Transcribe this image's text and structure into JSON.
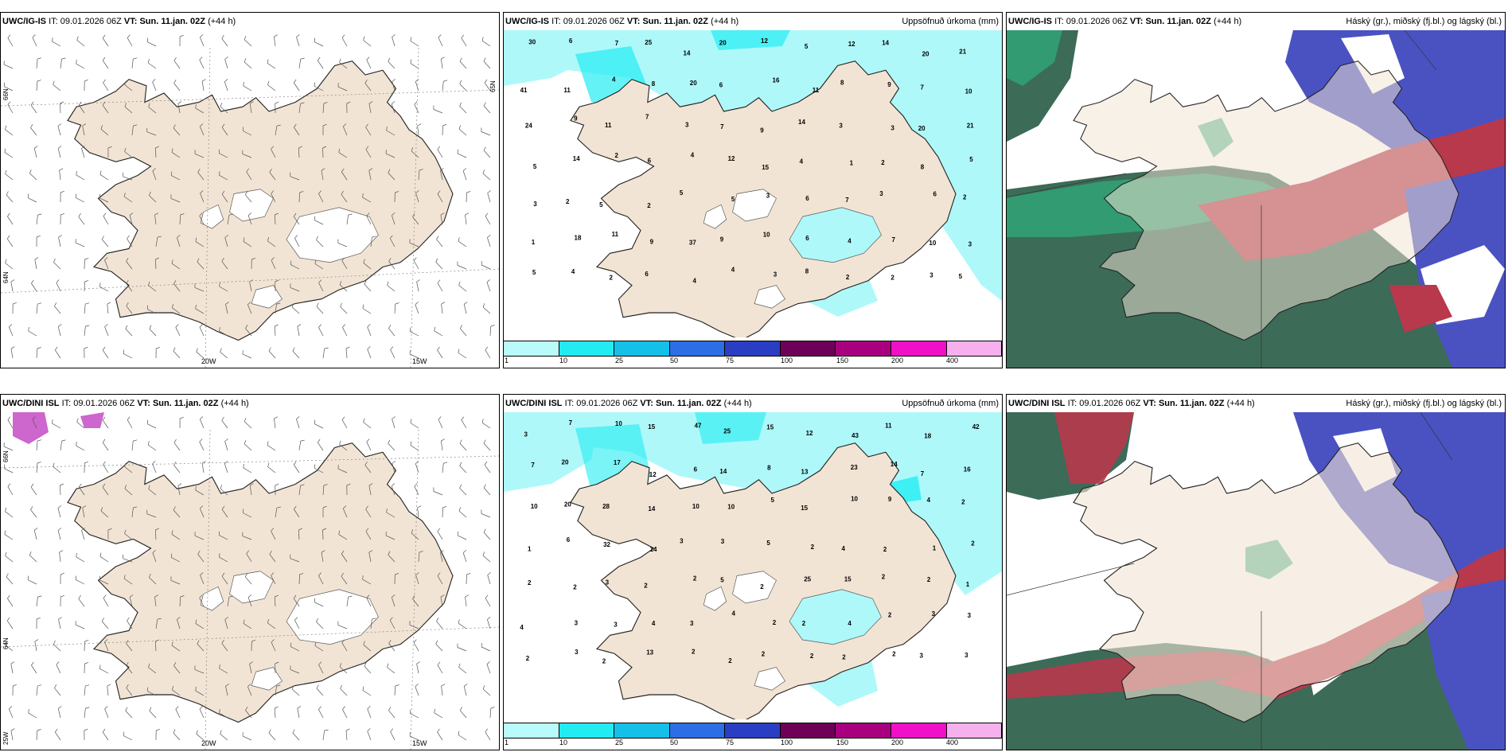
{
  "panels": [
    {
      "model": "UWC/IG-IS",
      "it_label": "IT:",
      "it_value": "09.01.2026 06Z",
      "vt_label": "VT:",
      "vt_value": "Sun. 11.jan. 02Z",
      "lead": "(+44 h)",
      "right_title": "",
      "kind": "wind",
      "lon_labels": [
        "20W",
        "15W"
      ],
      "lat_labels": [
        "66N",
        "64N",
        "65N"
      ]
    },
    {
      "model": "UWC/IG-IS",
      "it_label": "IT:",
      "it_value": "09.01.2026 06Z",
      "vt_label": "VT:",
      "vt_value": "Sun. 11.jan. 02Z",
      "lead": "(+44 h)",
      "right_title": "Uppsöfnuð úrkoma (mm)",
      "kind": "precip",
      "values": [
        "30",
        "6",
        "7",
        "25",
        "14",
        "20",
        "12",
        "5",
        "12",
        "14",
        "20",
        "21",
        "41",
        "11",
        "4",
        "8",
        "20",
        "6",
        "16",
        "11",
        "8",
        "9",
        "7",
        "10",
        "24",
        "9",
        "11",
        "7",
        "3",
        "7",
        "9",
        "14",
        "3",
        "3",
        "20",
        "21",
        "5",
        "14",
        "2",
        "6",
        "4",
        "12",
        "15",
        "4",
        "1",
        "2",
        "8",
        "5",
        "3",
        "2",
        "5",
        "2",
        "5",
        "5",
        "3",
        "6",
        "7",
        "3",
        "6",
        "2",
        "1",
        "18",
        "11",
        "9",
        "37",
        "9",
        "10",
        "6",
        "4",
        "7",
        "10",
        "3",
        "5",
        "4",
        "2",
        "6",
        "4",
        "4",
        "3",
        "8",
        "2",
        "2",
        "3",
        "5"
      ],
      "legend_labels": [
        "1",
        "10",
        "25",
        "50",
        "75",
        "100",
        "150",
        "200",
        "400"
      ]
    },
    {
      "model": "UWC/IG-IS",
      "it_label": "IT:",
      "it_value": "09.01.2026 06Z",
      "vt_label": "VT:",
      "vt_value": "Sun. 11.jan. 02Z",
      "lead": "(+44 h)",
      "right_title": "Háský (gr.), miðský (fj.bl.) og lágský (bl.)",
      "kind": "cloud"
    },
    {
      "model": "UWC/DINI ISL",
      "it_label": "IT:",
      "it_value": "09.01.2026 06Z",
      "vt_label": "VT:",
      "vt_value": "Sun. 11.jan. 02Z",
      "lead": "(+44 h)",
      "right_title": "",
      "kind": "wind",
      "lon_labels": [
        "20W",
        "15W"
      ],
      "lat_labels": [
        "66N",
        "64N",
        "25W"
      ]
    },
    {
      "model": "UWC/DINI ISL",
      "it_label": "IT:",
      "it_value": "09.01.2026 06Z",
      "vt_label": "VT:",
      "vt_value": "Sun. 11.jan. 02Z",
      "lead": "(+44 h)",
      "right_title": "Uppsöfnuð úrkoma (mm)",
      "kind": "precip",
      "values": [
        "3",
        "7",
        "10",
        "15",
        "47",
        "25",
        "15",
        "12",
        "43",
        "11",
        "18",
        "42",
        "7",
        "20",
        "17",
        "12",
        "6",
        "14",
        "8",
        "13",
        "23",
        "14",
        "7",
        "16",
        "10",
        "20",
        "28",
        "14",
        "10",
        "10",
        "5",
        "15",
        "10",
        "9",
        "4",
        "2",
        "1",
        "6",
        "32",
        "14",
        "3",
        "3",
        "5",
        "2",
        "4",
        "2",
        "1",
        "2",
        "2",
        "2",
        "3",
        "2",
        "2",
        "5",
        "2",
        "25",
        "15",
        "2",
        "2",
        "1",
        "4",
        "3",
        "3",
        "4",
        "3",
        "4",
        "2",
        "2",
        "4",
        "2",
        "3",
        "3",
        "2",
        "3",
        "2",
        "13",
        "2",
        "2",
        "2",
        "2",
        "2",
        "2",
        "3",
        "3"
      ],
      "legend_labels": [
        "1",
        "10",
        "25",
        "50",
        "75",
        "100",
        "150",
        "200",
        "400"
      ]
    },
    {
      "model": "UWC/DINI ISL",
      "it_label": "IT:",
      "it_value": "09.01.2026 06Z",
      "vt_label": "VT:",
      "vt_value": "Sun. 11.jan. 02Z",
      "lead": "(+44 h)",
      "right_title": "Háský (gr.), miðský (fj.bl.) og lágský (bl.)",
      "kind": "cloud"
    }
  ],
  "precip_legend_colors": [
    "#b9fbfb",
    "#22ecf2",
    "#14c0e8",
    "#2c6ee6",
    "#2a3ec4",
    "#6e0058",
    "#a8007e",
    "#f010c8",
    "#f6b0ee"
  ],
  "colors": {
    "land": "#f2e4d4",
    "ice": "#ffffff",
    "precip_light": "#aef8fa",
    "cloud_high": "#3c6b58",
    "cloud_mid": "#4a52c2",
    "cloud_low": "#b8384c"
  }
}
